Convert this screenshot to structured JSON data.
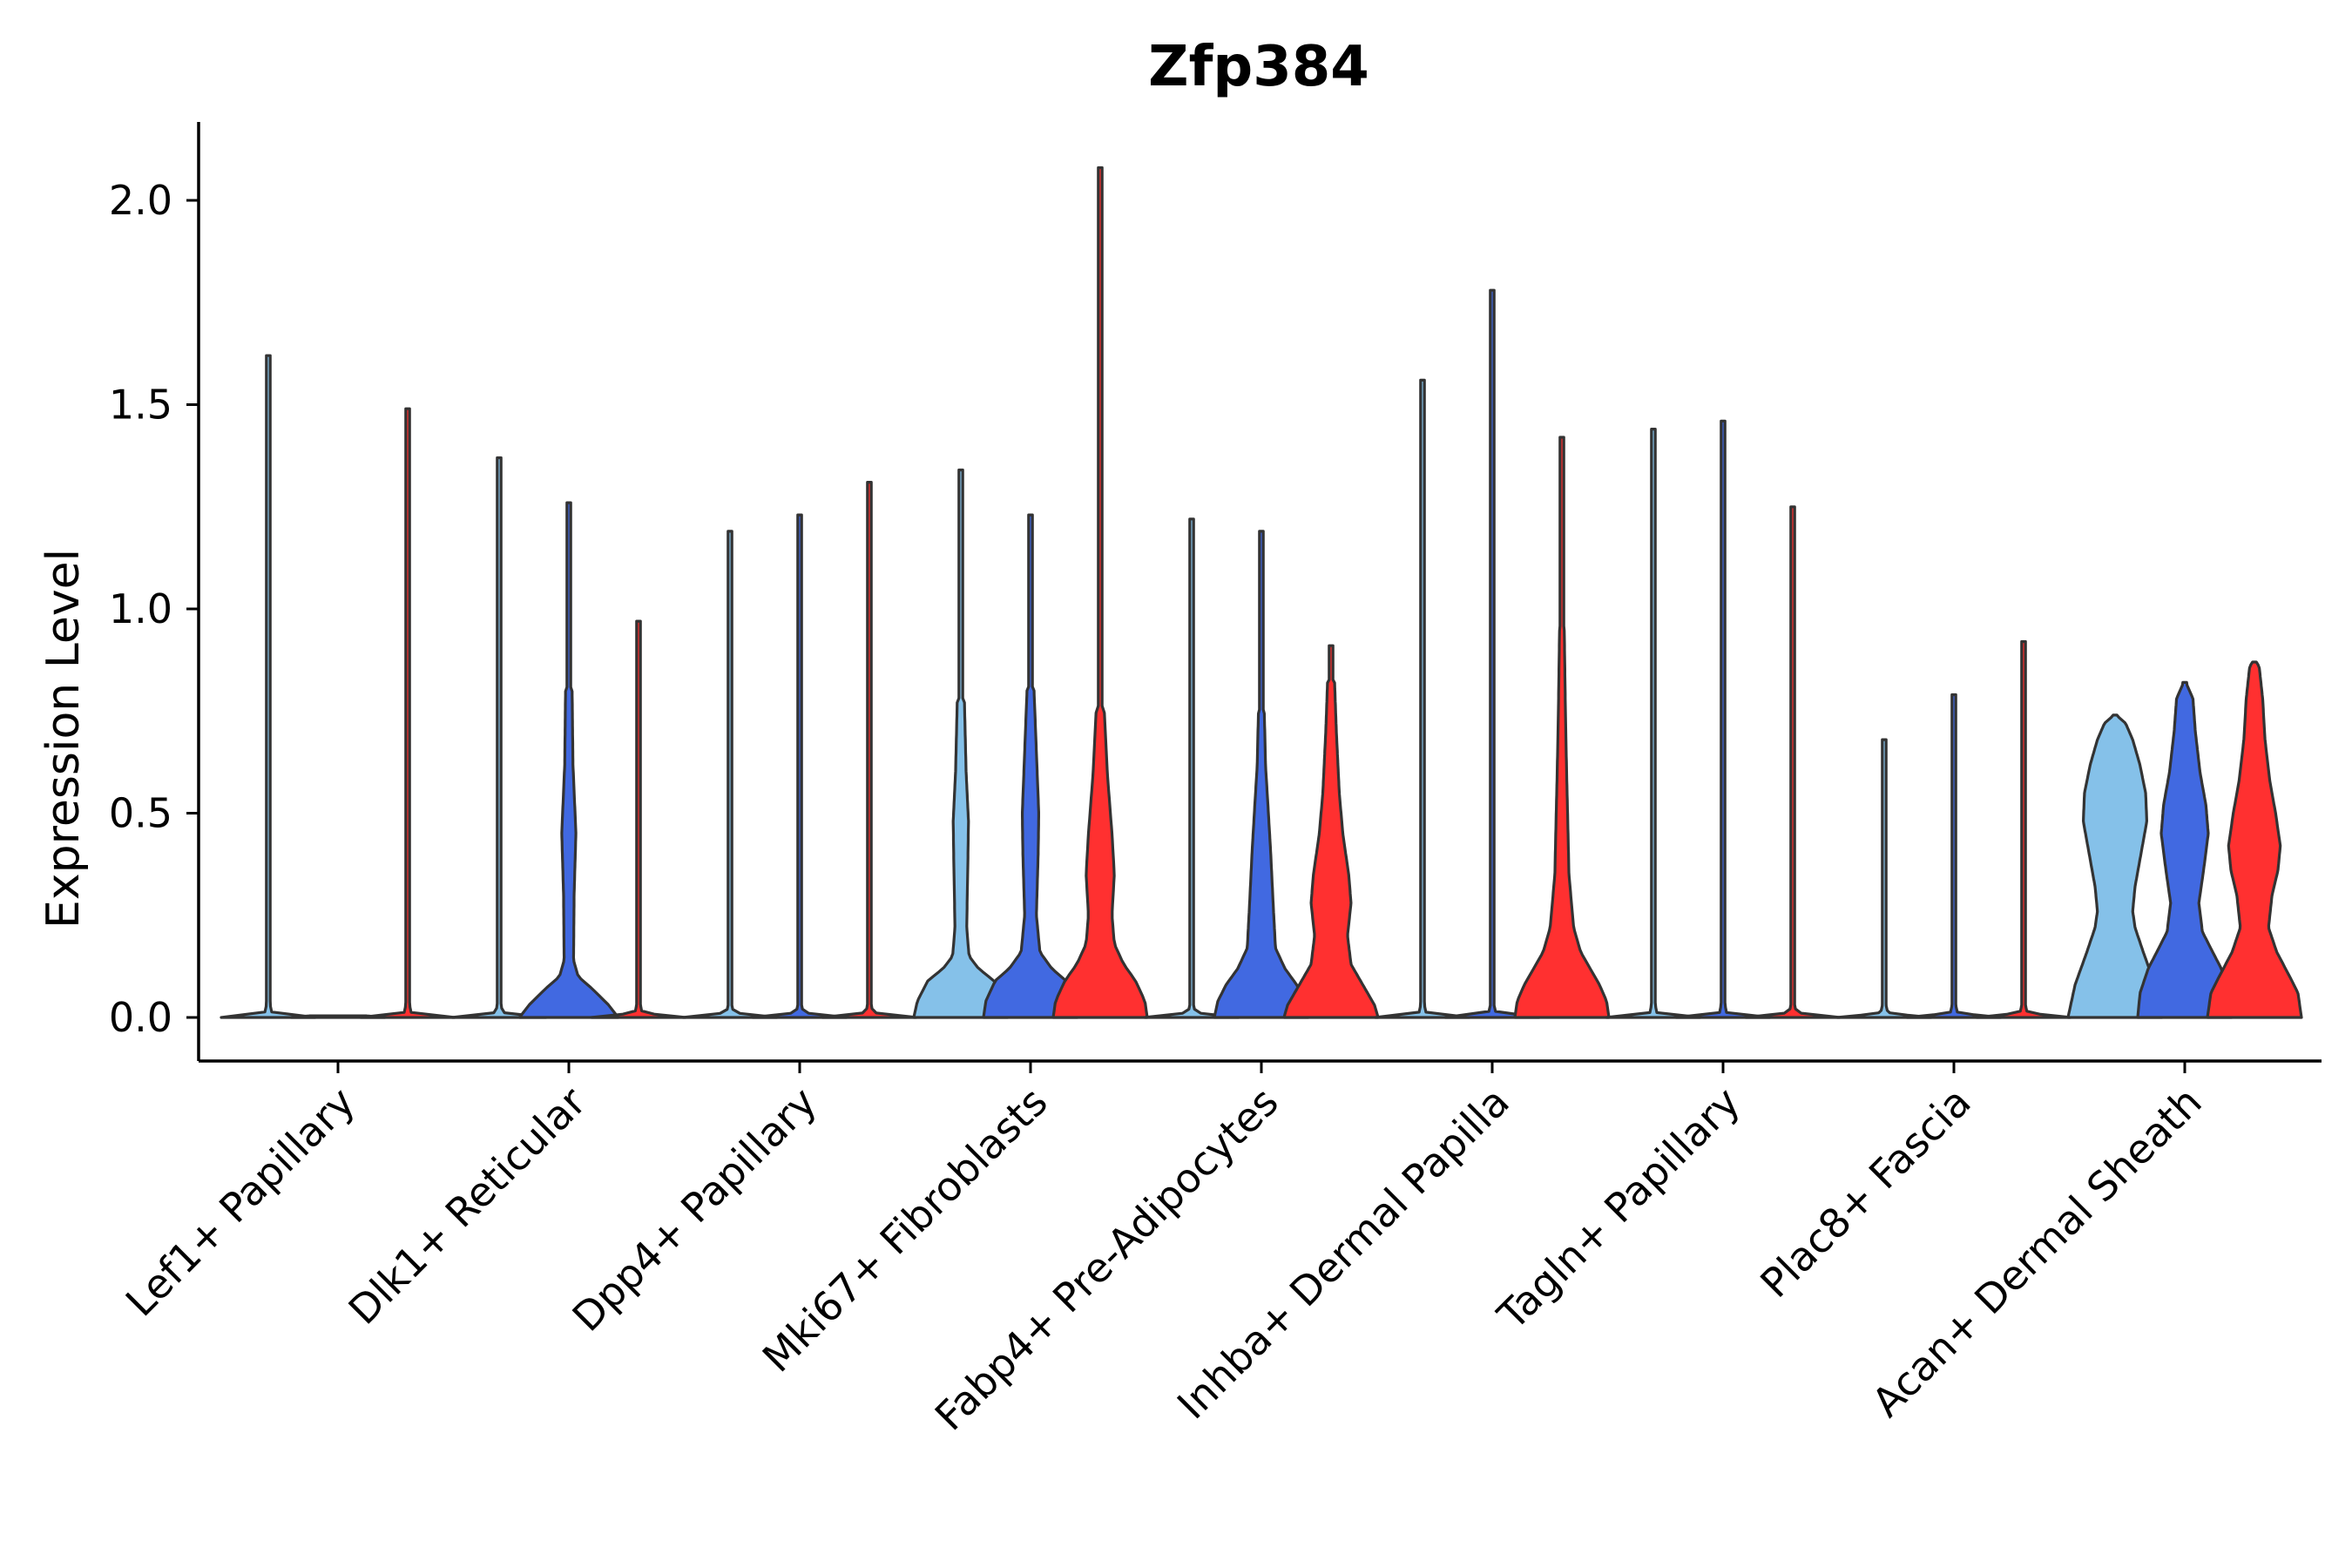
{
  "chart_data": {
    "type": "violin",
    "title": "Zfp384",
    "xlabel": "",
    "ylabel": "Expression Level",
    "ylim": [
      -0.1,
      2.2
    ],
    "yticks": [
      "0.0",
      "0.5",
      "1.0",
      "1.5",
      "2.0"
    ],
    "ytick_values": [
      0.0,
      0.5,
      1.0,
      1.5,
      2.0
    ],
    "categories": [
      "Lef1+ Papillary",
      "Dlk1+ Reticular",
      "Dpp4+ Papillary",
      "Mki67+ Fibroblasts",
      "Fabp4+ Pre-Adipocytes",
      "Inhba+ Dermal Papilla",
      "Tagln+ Papillary",
      "Plac8+ Fascia",
      "Acan+ Dermal Sheath"
    ],
    "split_colors": [
      "#85C1E9",
      "#4169E1",
      "#FF3030"
    ],
    "groups": [
      {
        "category": "Lef1+ Papillary",
        "violins": [
          {
            "max": 1.62,
            "profile": "flat"
          },
          {
            "max": 0.0,
            "profile": "flat"
          },
          {
            "max": 1.49,
            "profile": "flat"
          }
        ]
      },
      {
        "category": "Dlk1+ Reticular",
        "violins": [
          {
            "max": 1.37,
            "profile": "flat"
          },
          {
            "max": 1.26,
            "profile": "blue_dlk1"
          },
          {
            "max": 0.97,
            "profile": "flat"
          }
        ]
      },
      {
        "category": "Dpp4+ Papillary",
        "violins": [
          {
            "max": 1.19,
            "profile": "flat"
          },
          {
            "max": 1.23,
            "profile": "flat"
          },
          {
            "max": 1.31,
            "profile": "flat"
          }
        ]
      },
      {
        "category": "Mki67+ Fibroblasts",
        "violins": [
          {
            "max": 1.34,
            "profile": "mki_light"
          },
          {
            "max": 1.23,
            "profile": "mki_blue"
          },
          {
            "max": 2.08,
            "profile": "mki_red"
          }
        ]
      },
      {
        "category": "Fabp4+ Pre-Adipocytes",
        "violins": [
          {
            "max": 1.22,
            "profile": "flat"
          },
          {
            "max": 1.19,
            "profile": "fabp_blue"
          },
          {
            "max": 0.91,
            "profile": "fabp_red"
          }
        ]
      },
      {
        "category": "Inhba+ Dermal Papilla",
        "violins": [
          {
            "max": 1.56,
            "profile": "flat"
          },
          {
            "max": 1.78,
            "profile": "flat"
          },
          {
            "max": 1.42,
            "profile": "inhba_red"
          }
        ]
      },
      {
        "category": "Tagln+ Papillary",
        "violins": [
          {
            "max": 1.44,
            "profile": "flat"
          },
          {
            "max": 1.46,
            "profile": "flat"
          },
          {
            "max": 1.25,
            "profile": "flat"
          }
        ]
      },
      {
        "category": "Plac8+ Fascia",
        "violins": [
          {
            "max": 0.68,
            "profile": "flat"
          },
          {
            "max": 0.79,
            "profile": "flat"
          },
          {
            "max": 0.92,
            "profile": "flat"
          }
        ]
      },
      {
        "category": "Acan+ Dermal Sheath",
        "violins": [
          {
            "max": 0.74,
            "profile": "acan_light"
          },
          {
            "max": 0.82,
            "profile": "acan_blue"
          },
          {
            "max": 0.87,
            "profile": "acan_red"
          }
        ]
      }
    ],
    "grid": false,
    "legend": "none"
  }
}
